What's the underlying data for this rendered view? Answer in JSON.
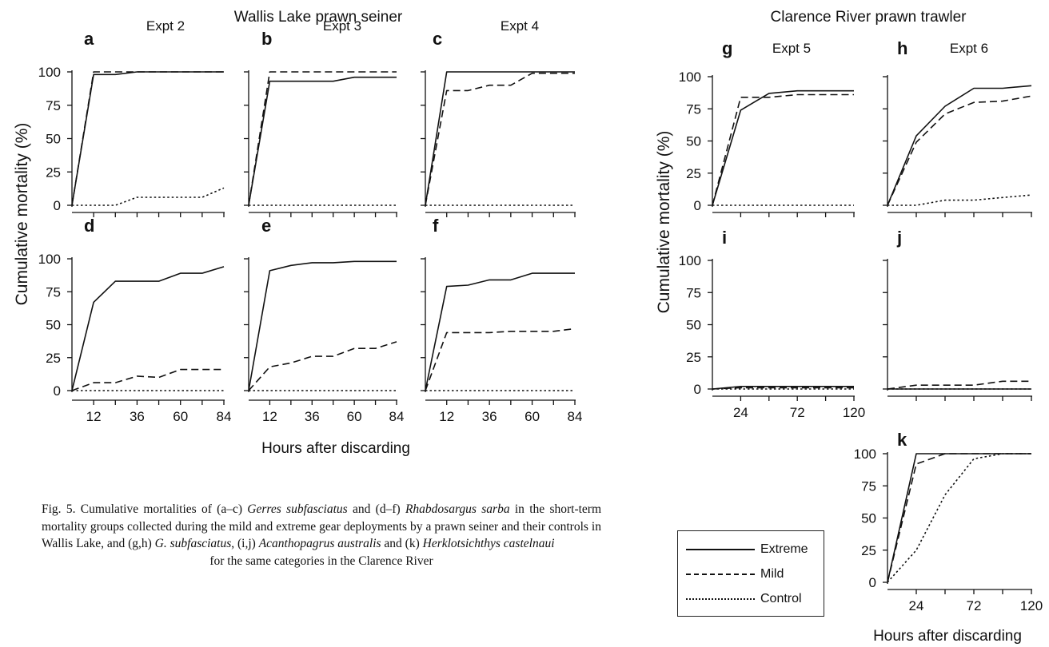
{
  "figure": {
    "groups": [
      {
        "title": "Wallis Lake prawn seiner",
        "ylabel": "Cumulative  mortality  (%)",
        "xlabel": "Hours after discarding"
      },
      {
        "title": "Clarence River prawn trawler",
        "ylabel": "Cumulative  mortality  (%)",
        "xlabel": "Hours after discarding"
      }
    ],
    "caption_parts": [
      {
        "text": "Fig. 5. Cumulative mortalities of (a–c) ",
        "italic": false
      },
      {
        "text": "Gerres subfasciatus",
        "italic": true
      },
      {
        "text": " and (d–f) ",
        "italic": false
      },
      {
        "text": "Rhabdosargus sarba",
        "italic": true
      },
      {
        "text": " in the short-term mortality groups collected during the mild and extreme gear deployments by a prawn seiner and their controls in Wallis Lake, and (g,h) ",
        "italic": false
      },
      {
        "text": "G. subfasciatus",
        "italic": true
      },
      {
        "text": ", (i,j) ",
        "italic": false
      },
      {
        "text": "Acanthopagrus australis",
        "italic": true
      },
      {
        "text": " and (k) ",
        "italic": false
      },
      {
        "text": "Herklotsichthys castelnaui",
        "italic": true
      },
      {
        "text": " ",
        "italic": false
      }
    ],
    "caption_last": "for the same categories in the Clarence River",
    "legend": [
      {
        "label": "Extreme",
        "style": "solid"
      },
      {
        "label": "Mild",
        "style": "dashed"
      },
      {
        "label": "Control",
        "style": "dotted"
      }
    ]
  },
  "chart_data": [
    {
      "type": "line",
      "panel": "a",
      "expt": "Expt 2",
      "group": "Wallis Lake prawn seiner",
      "xticks": [
        12,
        36,
        60,
        84
      ],
      "yticks": [
        0,
        25,
        50,
        75,
        100
      ],
      "ylim": [
        0,
        100
      ],
      "x": [
        0,
        12,
        24,
        36,
        48,
        60,
        72,
        84
      ],
      "series": [
        {
          "name": "Extreme",
          "style": "solid",
          "values": [
            0,
            98,
            98,
            100,
            100,
            100,
            100,
            100
          ]
        },
        {
          "name": "Mild",
          "style": "dashed",
          "values": [
            0,
            100,
            100,
            100,
            100,
            100,
            100,
            100
          ]
        },
        {
          "name": "Control",
          "style": "dotted",
          "values": [
            0,
            0,
            0,
            6,
            6,
            6,
            6,
            13
          ]
        }
      ]
    },
    {
      "type": "line",
      "panel": "b",
      "expt": "Expt 3",
      "group": "Wallis Lake prawn seiner",
      "xticks": [
        12,
        36,
        60,
        84
      ],
      "yticks": [
        0,
        25,
        50,
        75,
        100
      ],
      "ylim": [
        0,
        100
      ],
      "x": [
        0,
        12,
        24,
        36,
        48,
        60,
        72,
        84
      ],
      "series": [
        {
          "name": "Extreme",
          "style": "solid",
          "values": [
            0,
            93,
            93,
            93,
            93,
            96,
            96,
            96
          ]
        },
        {
          "name": "Mild",
          "style": "dashed",
          "values": [
            0,
            100,
            100,
            100,
            100,
            100,
            100,
            100
          ]
        },
        {
          "name": "Control",
          "style": "dotted",
          "values": [
            0,
            0,
            0,
            0,
            0,
            0,
            0,
            0
          ]
        }
      ]
    },
    {
      "type": "line",
      "panel": "c",
      "expt": "Expt 4",
      "group": "Wallis Lake prawn seiner",
      "xticks": [
        12,
        36,
        60,
        84
      ],
      "yticks": [
        0,
        25,
        50,
        75,
        100
      ],
      "ylim": [
        0,
        100
      ],
      "x": [
        0,
        12,
        24,
        36,
        48,
        60,
        72,
        84
      ],
      "series": [
        {
          "name": "Extreme",
          "style": "solid",
          "values": [
            0,
            100,
            100,
            100,
            100,
            100,
            100,
            100
          ]
        },
        {
          "name": "Mild",
          "style": "dashed",
          "values": [
            0,
            86,
            86,
            90,
            90,
            99,
            99,
            99
          ]
        },
        {
          "name": "Control",
          "style": "dotted",
          "values": [
            0,
            0,
            0,
            0,
            0,
            0,
            0,
            0
          ]
        }
      ]
    },
    {
      "type": "line",
      "panel": "d",
      "group": "Wallis Lake prawn seiner",
      "xticks": [
        12,
        36,
        60,
        84
      ],
      "yticks": [
        0,
        25,
        50,
        75,
        100
      ],
      "ylim": [
        0,
        100
      ],
      "x": [
        0,
        12,
        24,
        36,
        48,
        60,
        72,
        84
      ],
      "series": [
        {
          "name": "Extreme",
          "style": "solid",
          "values": [
            0,
            67,
            83,
            83,
            83,
            89,
            89,
            94
          ]
        },
        {
          "name": "Mild",
          "style": "dashed",
          "values": [
            0,
            6,
            6,
            11,
            10,
            16,
            16,
            16
          ]
        },
        {
          "name": "Control",
          "style": "dotted",
          "values": [
            0,
            0,
            0,
            0,
            0,
            0,
            0,
            0
          ]
        }
      ]
    },
    {
      "type": "line",
      "panel": "e",
      "group": "Wallis Lake prawn seiner",
      "xticks": [
        12,
        36,
        60,
        84
      ],
      "yticks": [
        0,
        25,
        50,
        75,
        100
      ],
      "ylim": [
        0,
        100
      ],
      "x": [
        0,
        12,
        24,
        36,
        48,
        60,
        72,
        84
      ],
      "series": [
        {
          "name": "Extreme",
          "style": "solid",
          "values": [
            0,
            91,
            95,
            97,
            97,
            98,
            98,
            98
          ]
        },
        {
          "name": "Mild",
          "style": "dashed",
          "values": [
            0,
            18,
            21,
            26,
            26,
            32,
            32,
            37
          ]
        },
        {
          "name": "Control",
          "style": "dotted",
          "values": [
            0,
            0,
            0,
            0,
            0,
            0,
            0,
            0
          ]
        }
      ]
    },
    {
      "type": "line",
      "panel": "f",
      "group": "Wallis Lake prawn seiner",
      "xticks": [
        12,
        36,
        60,
        84
      ],
      "yticks": [
        0,
        25,
        50,
        75,
        100
      ],
      "ylim": [
        0,
        100
      ],
      "x": [
        0,
        12,
        24,
        36,
        48,
        60,
        72,
        84
      ],
      "series": [
        {
          "name": "Extreme",
          "style": "solid",
          "values": [
            0,
            79,
            80,
            84,
            84,
            89,
            89,
            89
          ]
        },
        {
          "name": "Mild",
          "style": "dashed",
          "values": [
            0,
            44,
            44,
            44,
            45,
            45,
            45,
            47
          ]
        },
        {
          "name": "Control",
          "style": "dotted",
          "values": [
            0,
            0,
            0,
            0,
            0,
            0,
            0,
            0
          ]
        }
      ]
    },
    {
      "type": "line",
      "panel": "g",
      "expt": "Expt 5",
      "group": "Clarence River prawn trawler",
      "xticks": [
        24,
        72,
        120
      ],
      "yticks": [
        0,
        25,
        50,
        75,
        100
      ],
      "ylim": [
        0,
        100
      ],
      "x": [
        0,
        24,
        48,
        72,
        96,
        120
      ],
      "series": [
        {
          "name": "Extreme",
          "style": "solid",
          "values": [
            0,
            74,
            87,
            89,
            89,
            89
          ]
        },
        {
          "name": "Mild",
          "style": "dashed",
          "values": [
            0,
            84,
            84,
            86,
            86,
            86
          ]
        },
        {
          "name": "Control",
          "style": "dotted",
          "values": [
            0,
            0,
            0,
            0,
            0,
            0
          ]
        }
      ]
    },
    {
      "type": "line",
      "panel": "h",
      "expt": "Expt 6",
      "group": "Clarence River prawn trawler",
      "xticks": [
        24,
        72,
        120
      ],
      "yticks": [
        0,
        25,
        50,
        75,
        100
      ],
      "ylim": [
        0,
        100
      ],
      "x": [
        0,
        24,
        48,
        72,
        96,
        120
      ],
      "series": [
        {
          "name": "Extreme",
          "style": "solid",
          "values": [
            0,
            54,
            77,
            91,
            91,
            93
          ]
        },
        {
          "name": "Mild",
          "style": "dashed",
          "values": [
            0,
            49,
            71,
            80,
            81,
            85
          ]
        },
        {
          "name": "Control",
          "style": "dotted",
          "values": [
            0,
            0,
            4,
            4,
            6,
            8
          ]
        }
      ]
    },
    {
      "type": "line",
      "panel": "i",
      "group": "Clarence River prawn trawler",
      "xticks": [
        24,
        72,
        120
      ],
      "yticks": [
        0,
        25,
        50,
        75,
        100
      ],
      "ylim": [
        0,
        100
      ],
      "x": [
        0,
        24,
        48,
        72,
        96,
        120
      ],
      "series": [
        {
          "name": "Extreme",
          "style": "solid",
          "values": [
            0,
            2,
            2,
            2,
            2,
            2
          ]
        },
        {
          "name": "Mild",
          "style": "dashed",
          "values": [
            0,
            1,
            1,
            1,
            1,
            1
          ]
        },
        {
          "name": "Control",
          "style": "dotted",
          "values": [
            0,
            0,
            0,
            0,
            0,
            0
          ]
        }
      ]
    },
    {
      "type": "line",
      "panel": "j",
      "group": "Clarence River prawn trawler",
      "xticks": [
        24,
        72,
        120
      ],
      "yticks": [
        0,
        25,
        50,
        75,
        100
      ],
      "ylim": [
        0,
        100
      ],
      "x": [
        0,
        24,
        48,
        72,
        96,
        120
      ],
      "series": [
        {
          "name": "Extreme",
          "style": "solid",
          "values": [
            0,
            0,
            0,
            0,
            0,
            0
          ]
        },
        {
          "name": "Mild",
          "style": "dashed",
          "values": [
            0,
            3,
            3,
            3,
            6,
            6
          ]
        },
        {
          "name": "Control",
          "style": "dotted",
          "values": [
            0,
            0,
            0,
            0,
            0,
            0
          ]
        }
      ]
    },
    {
      "type": "line",
      "panel": "k",
      "group": "Clarence River prawn trawler",
      "xticks": [
        24,
        72,
        120
      ],
      "yticks": [
        0,
        25,
        50,
        75,
        100
      ],
      "ylim": [
        0,
        100
      ],
      "x": [
        0,
        24,
        48,
        72,
        96,
        120
      ],
      "series": [
        {
          "name": "Extreme",
          "style": "solid",
          "values": [
            0,
            100,
            100,
            100,
            100,
            100
          ]
        },
        {
          "name": "Mild",
          "style": "dashed",
          "values": [
            0,
            92,
            100,
            100,
            100,
            100
          ]
        },
        {
          "name": "Control",
          "style": "dotted",
          "values": [
            0,
            25,
            68,
            96,
            100,
            100
          ]
        }
      ]
    }
  ]
}
